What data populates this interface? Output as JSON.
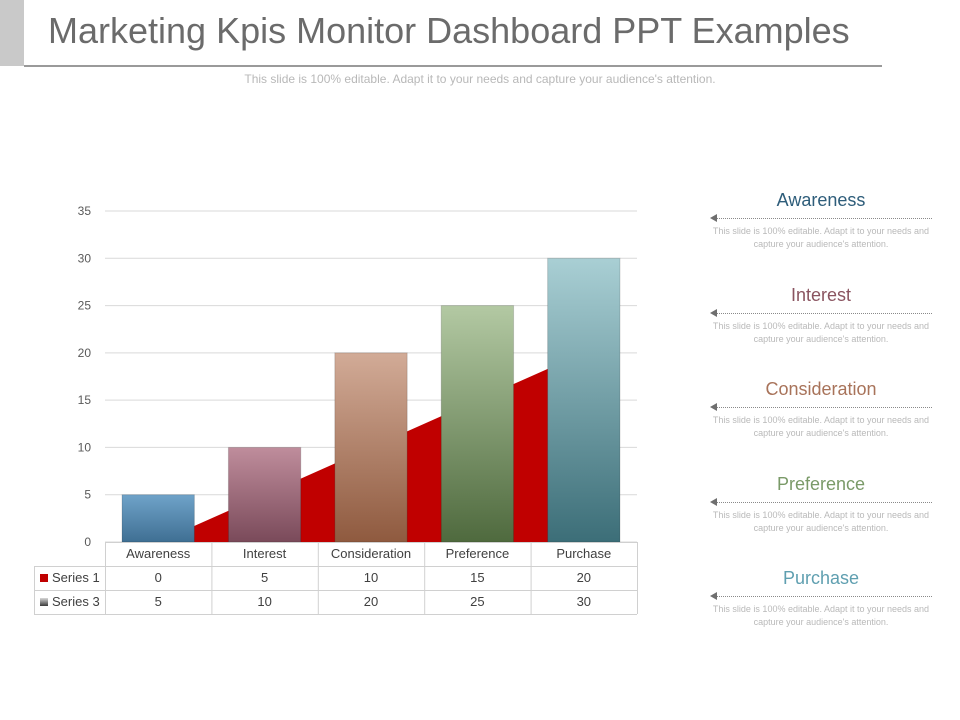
{
  "header": {
    "title": "Marketing Kpis Monitor Dashboard PPT Examples",
    "subtitle": "This slide is 100% editable. Adapt it to your needs and capture your audience's attention."
  },
  "chart_data": {
    "type": "bar",
    "categories": [
      "Awareness",
      "Interest",
      "Consideration",
      "Preference",
      "Purchase"
    ],
    "series": [
      {
        "name": "Series 1",
        "type": "area",
        "values": [
          0,
          5,
          10,
          15,
          20
        ],
        "color": "#c00000"
      },
      {
        "name": "Series 3",
        "type": "bar",
        "values": [
          5,
          10,
          20,
          25,
          30
        ]
      }
    ],
    "bar_colors": [
      [
        "#6fa3c9",
        "#3f6f93"
      ],
      [
        "#bf8d9c",
        "#7a4a5a"
      ],
      [
        "#d2ab97",
        "#8f5a3f"
      ],
      [
        "#b3c9a3",
        "#4f6a3e"
      ],
      [
        "#a9cfd4",
        "#3c6e78"
      ]
    ],
    "ylim": [
      0,
      35
    ],
    "yticks": [
      "0",
      "5",
      "10",
      "15",
      "20",
      "25",
      "30",
      "35"
    ],
    "grid": true,
    "data_table": true
  },
  "sidebar": {
    "items": [
      {
        "title": "Awareness",
        "color": "#2e5d7a",
        "desc": "This slide is 100% editable. Adapt it to your needs and capture your audience's attention."
      },
      {
        "title": "Interest",
        "color": "#8a5460",
        "desc": "This slide is 100% editable. Adapt it to your needs and capture your audience's attention."
      },
      {
        "title": "Consideration",
        "color": "#a8735a",
        "desc": "This slide is 100% editable. Adapt it to your needs and capture your audience's attention."
      },
      {
        "title": "Preference",
        "color": "#7a9a68",
        "desc": "This slide is 100% editable. Adapt it to your needs and capture your audience's attention."
      },
      {
        "title": "Purchase",
        "color": "#5f9fb0",
        "desc": "This slide is 100% editable. Adapt it to your needs and capture your audience's attention."
      }
    ]
  }
}
